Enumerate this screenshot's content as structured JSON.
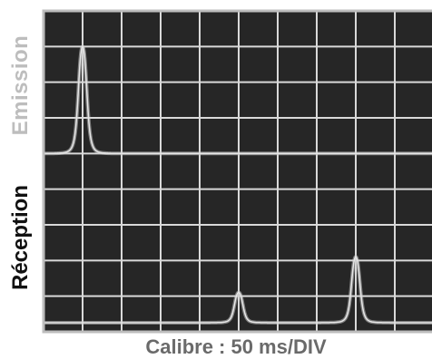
{
  "labels": {
    "emission": "Emission",
    "reception": "Réception",
    "caption": "Calibre : 50 ms/DIV"
  },
  "grid": {
    "columns": 10,
    "rows": 9
  },
  "colors": {
    "screen": "#262626",
    "grid": "#d9d9d9",
    "trace": "#c8c8c8",
    "frame": "#bdbdbd"
  },
  "signals": {
    "emission": {
      "baseline_row": 4,
      "peaks": [
        {
          "division": 1.0,
          "amplitude_div": 3.0
        }
      ]
    },
    "reception": {
      "baseline_row": 9,
      "peaks": [
        {
          "division": 5.0,
          "amplitude_div": 0.85
        },
        {
          "division": 8.0,
          "amplitude_div": 1.85
        }
      ]
    }
  }
}
